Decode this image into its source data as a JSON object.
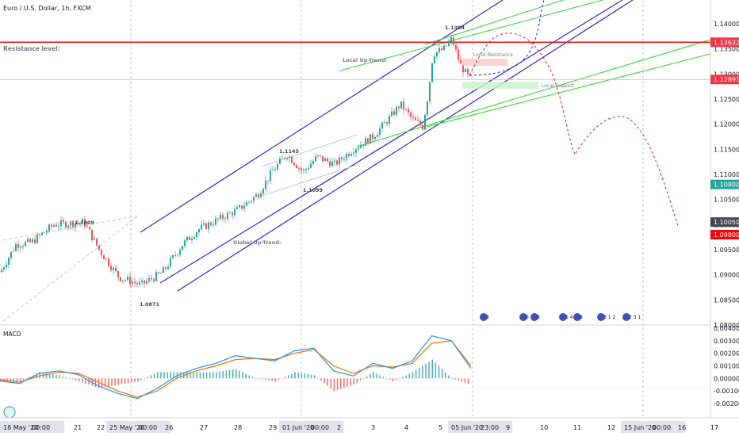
{
  "header": {
    "symbol_title": "Euro / U.S. Dollar, 1h, FXCM"
  },
  "labels": {
    "resistance_level": "Resistance level:",
    "local_up_trend": "Local Up-Trend:",
    "global_up_trend": "Global Up-Trend:",
    "local_resistance": "Local Resistance",
    "local_support": "Local Support",
    "high_a": "1.1009",
    "low_a": "1.0871",
    "high_b": "1.1145",
    "low_b": "1.1099",
    "high_c": "1.1384"
  },
  "price_axis": {
    "ticks": [
      "1.14000",
      "1.13500",
      "1.13000",
      "1.12500",
      "1.12000",
      "1.11500",
      "1.11000",
      "1.10500",
      "1.10000",
      "1.09500",
      "1.09000",
      "1.08500",
      "1.08000"
    ],
    "tick_values": [
      1.14,
      1.135,
      1.13,
      1.125,
      1.12,
      1.115,
      1.11,
      1.105,
      1.1,
      1.095,
      1.09,
      1.085,
      1.08
    ],
    "badges": [
      {
        "label": "1.13632",
        "value": 1.13632,
        "color": "#f23645"
      },
      {
        "label": "1.12891",
        "value": 1.12891,
        "color": "#f23645"
      },
      {
        "label": "1.10800",
        "value": 1.108,
        "color": "#26a69a"
      },
      {
        "label": "1.10050",
        "value": 1.1005,
        "color": "#434651"
      },
      {
        "label": "1.09800",
        "value": 1.098,
        "color": "#ff0000"
      }
    ]
  },
  "macd_axis": {
    "title": "MACD",
    "ticks": [
      "0.00400",
      "0.00300",
      "0.00200",
      "0.00100",
      "0.00000",
      "-0.00100",
      "-0.00200"
    ],
    "tick_values": [
      0.004,
      0.003,
      0.002,
      0.001,
      0.0,
      -0.001,
      -0.002
    ]
  },
  "time_axis": {
    "labels": [
      "18 May '20",
      "00:00",
      "21",
      "22",
      "25 May '20",
      "00:00",
      "26",
      "27",
      "28",
      "29",
      "01 Jun '20",
      "00:00",
      "2",
      "3",
      "4",
      "5",
      "05 Jun '20",
      "23:00",
      "9",
      "10",
      "11",
      "12",
      "15 Jun '20",
      "00:00",
      "16",
      "17"
    ]
  },
  "event_badges": [
    "3",
    "6 2 1",
    "8",
    "5 4",
    "8",
    "3 1 2",
    "2 3 1"
  ],
  "colors": {
    "candle_up": "#26a69a",
    "candle_down": "#ef5350",
    "channel": "#2a2ad6",
    "trend_green": "#2fd42f",
    "resistance": "#e31a1c",
    "macd_line": "#2196f3",
    "signal_line": "#ff6d00",
    "forecast": "#e31a1c",
    "forecast_alt": "#1e1ecc"
  },
  "chart_data": [
    {
      "type": "candlestick",
      "title": "Euro / U.S. Dollar, 1h, FXCM",
      "x_dates": [
        "18 May '20",
        "21",
        "22",
        "25 May '20",
        "26",
        "27",
        "28",
        "29",
        "01 Jun '20",
        "2",
        "3",
        "4",
        "5",
        "05 Jun '20 23:00"
      ],
      "close_approx": [
        1.0905,
        1.099,
        1.096,
        1.0885,
        1.0905,
        1.0985,
        1.1,
        1.109,
        1.112,
        1.113,
        1.117,
        1.123,
        1.134,
        1.129
      ],
      "ylim": [
        1.08,
        1.142
      ],
      "annotations": [
        {
          "label": "1.1009",
          "price": 1.1009
        },
        {
          "label": "1.0871",
          "price": 1.0871
        },
        {
          "label": "1.1145",
          "price": 1.1145
        },
        {
          "label": "1.1099",
          "price": 1.1099
        },
        {
          "label": "1.1384",
          "price": 1.1384
        }
      ],
      "levels": {
        "resistance": 1.13632,
        "last": 1.12891,
        "target_1": 1.108,
        "target_2": 1.1005,
        "target_3": 1.098
      }
    },
    {
      "type": "line",
      "title": "MACD",
      "series": [
        {
          "name": "MACD",
          "values": [
            -0.0002,
            -0.0004,
            0.0004,
            0.0006,
            0.0003,
            -0.0006,
            -0.0012,
            -0.0016,
            -0.0008,
            0.0002,
            0.0008,
            0.0012,
            0.0018,
            0.0016,
            0.0014,
            0.0022,
            0.0024,
            0.0006,
            0.0002,
            0.0012,
            0.0008,
            0.0014,
            0.0034,
            0.003,
            0.0008
          ]
        },
        {
          "name": "Signal",
          "values": [
            -0.0001,
            -0.0003,
            0.0002,
            0.0005,
            0.0004,
            -0.0003,
            -0.001,
            -0.0015,
            -0.001,
            0.0,
            0.0006,
            0.001,
            0.0015,
            0.0016,
            0.0015,
            0.002,
            0.0023,
            0.001,
            0.0004,
            0.001,
            0.0009,
            0.0012,
            0.0028,
            0.003,
            0.001
          ]
        }
      ],
      "ylim": [
        -0.0025,
        0.0042
      ]
    }
  ]
}
